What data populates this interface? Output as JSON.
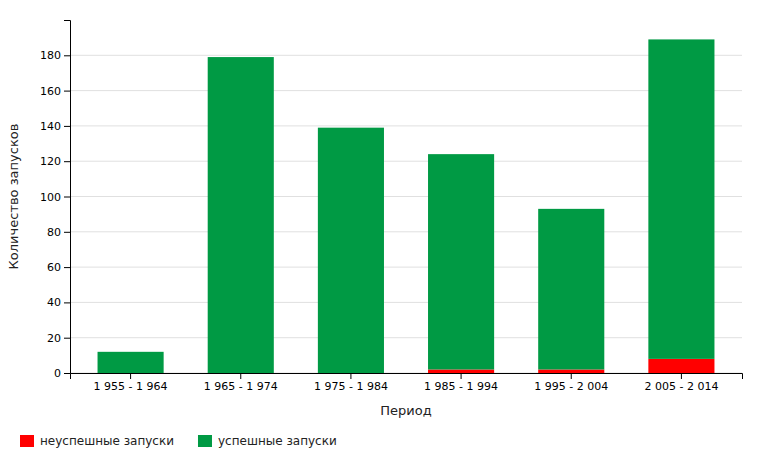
{
  "chart_data": {
    "type": "bar",
    "stacked": true,
    "categories": [
      "1 955 - 1 964",
      "1 965 - 1 974",
      "1 975 - 1 984",
      "1 985 - 1 994",
      "1 995 - 2 004",
      "2 005 - 2 014"
    ],
    "series": [
      {
        "name": "неуспешные запуски",
        "color": "#FF0000",
        "values": [
          0,
          0,
          0,
          2,
          2,
          8
        ]
      },
      {
        "name": "успешные запуски",
        "color": "#009A44",
        "values": [
          12,
          179,
          139,
          122,
          91,
          181
        ]
      }
    ],
    "xlabel": "Период",
    "ylabel": "Количество запусков",
    "ylim": [
      0,
      200
    ],
    "yticks": [
      0,
      20,
      40,
      60,
      80,
      100,
      120,
      140,
      160,
      180
    ],
    "grid": true,
    "legend": "bottom-left"
  }
}
